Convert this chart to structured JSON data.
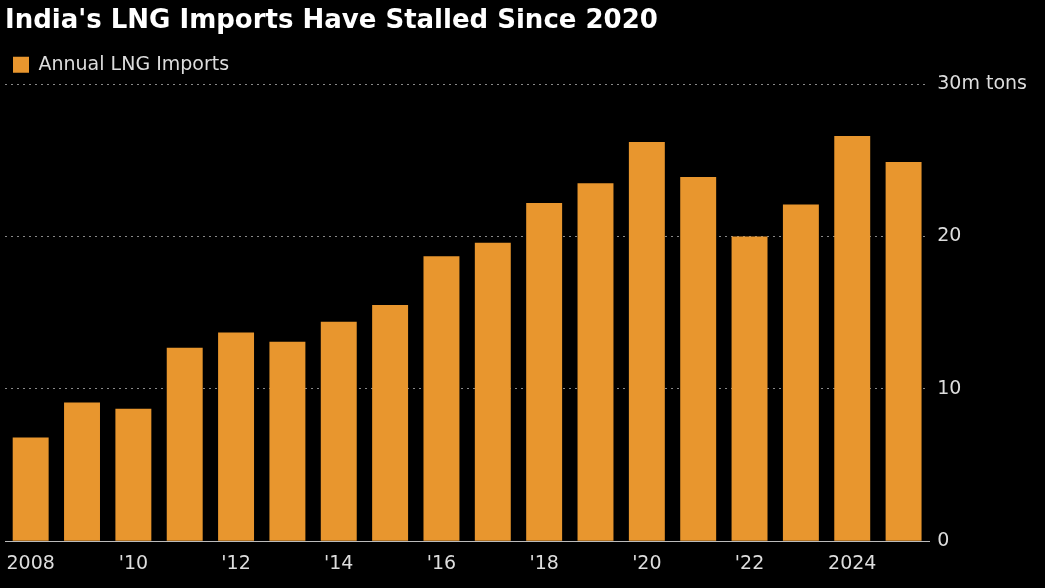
{
  "chart_data": {
    "type": "bar",
    "title": "India's LNG Imports Have Stalled Since 2020",
    "categories": [
      "2008",
      null,
      "'10",
      null,
      "'12",
      null,
      "'14",
      null,
      "'16",
      null,
      "'18",
      null,
      "'20",
      null,
      "'22",
      null,
      "2024",
      null
    ],
    "series": [
      {
        "name": "Annual LNG Imports",
        "color": "#e8962e",
        "values": [
          6.8,
          9.1,
          8.7,
          12.7,
          13.7,
          13.1,
          14.4,
          15.5,
          18.7,
          19.6,
          22.2,
          23.5,
          26.2,
          23.9,
          20.0,
          22.1,
          26.6,
          24.9
        ]
      }
    ],
    "ylim": [
      0,
      30
    ],
    "yticks": [
      0,
      10,
      20,
      {
        "value": 30,
        "label": "30m tons"
      }
    ],
    "grid": "y",
    "legend": "top left"
  }
}
